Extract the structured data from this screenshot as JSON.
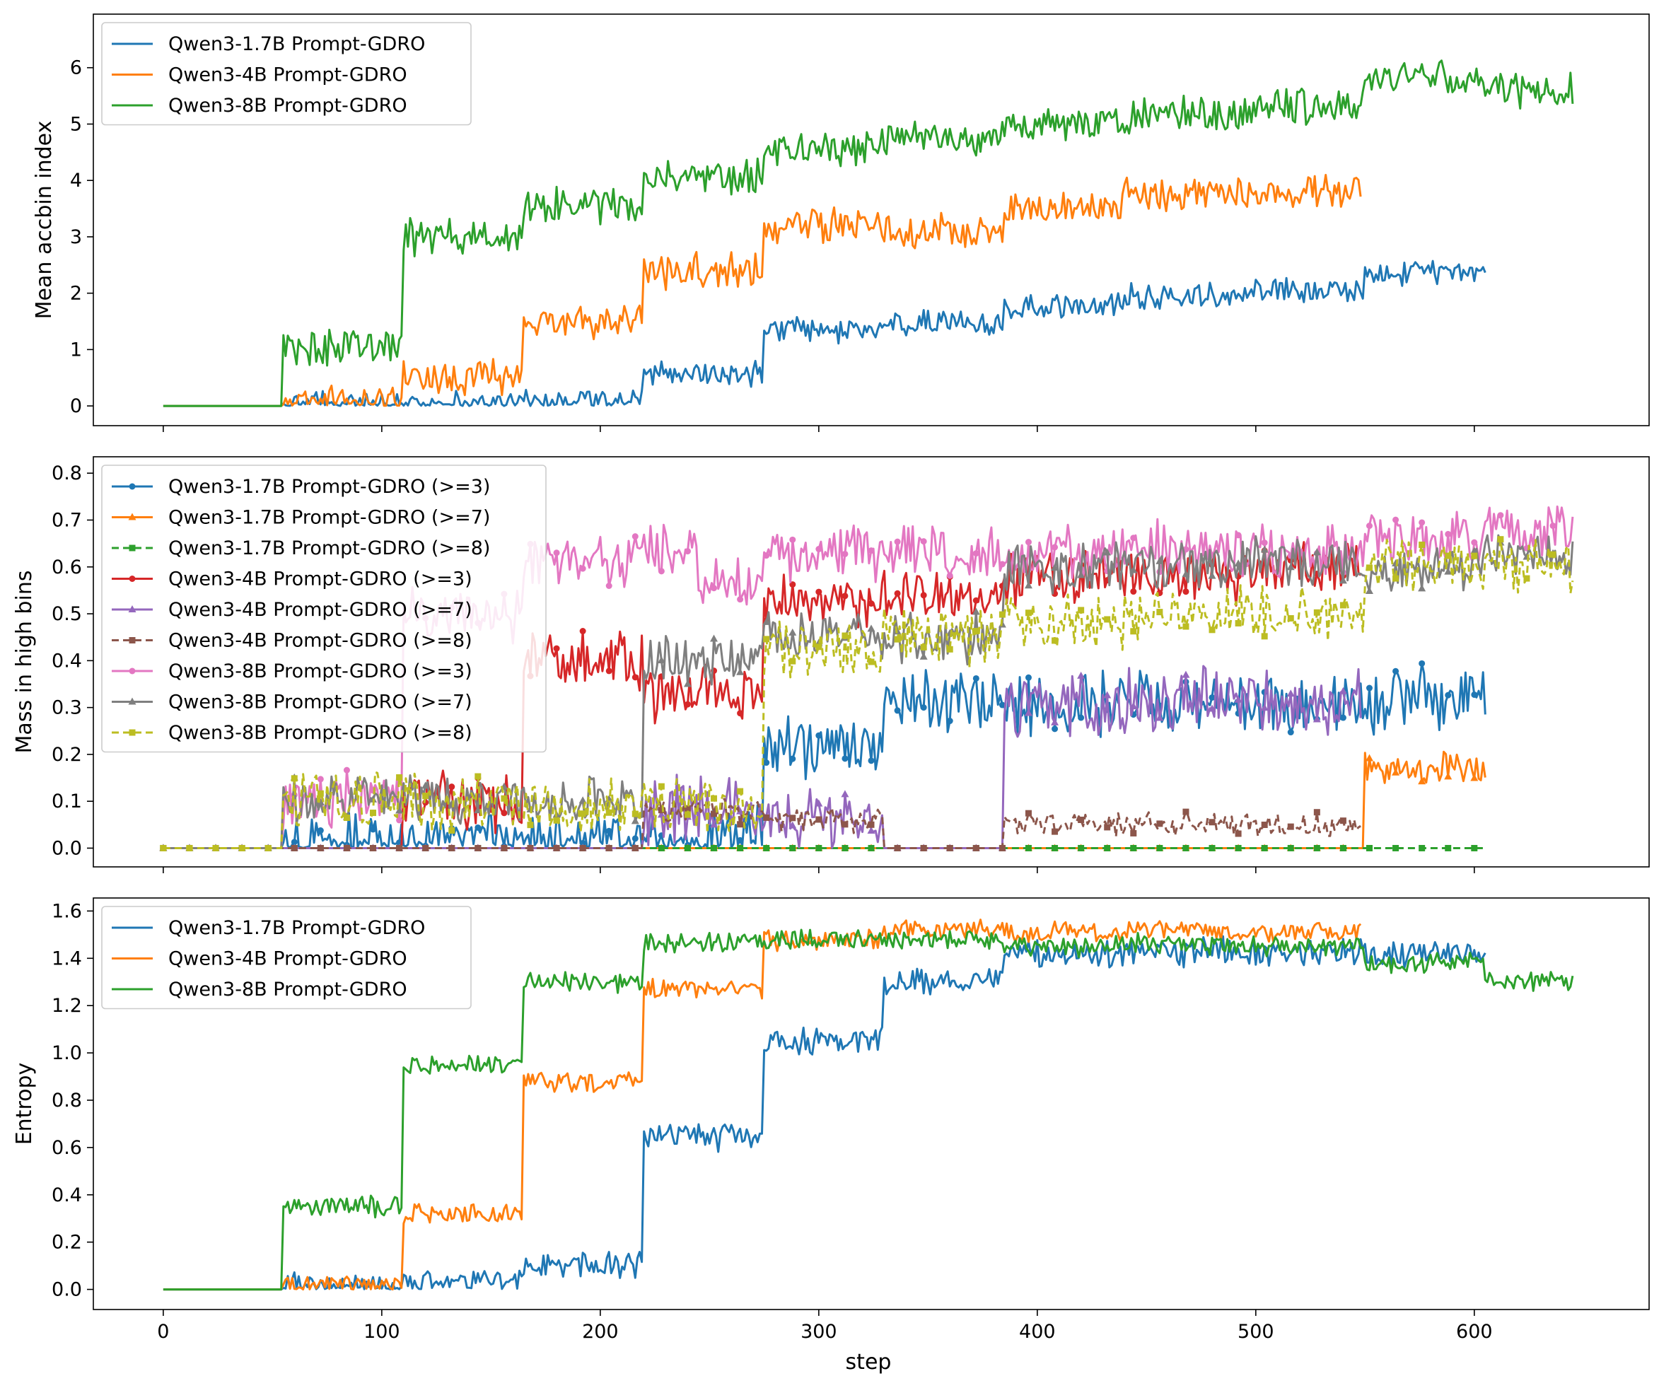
{
  "chart_data": [
    {
      "type": "line",
      "ylabel": "Mean accbin index",
      "xlabel": "",
      "xlim": [
        -32,
        680
      ],
      "ylim": [
        -0.35,
        6.95
      ],
      "xticks": [
        0,
        100,
        200,
        300,
        400,
        500,
        600
      ],
      "yticks": [
        0,
        1,
        2,
        3,
        4,
        5,
        6
      ],
      "ytick_labels": [
        "0",
        "1",
        "2",
        "3",
        "4",
        "5",
        "6"
      ],
      "legend": "top-left",
      "series": [
        {
          "name": "Qwen3-1.7B Prompt-GDRO",
          "color": "#1f77b4",
          "last_step": 605,
          "noise": 0.26,
          "segments": [
            [
              0,
              0
            ],
            [
              55,
              0.02
            ],
            [
              110,
              0.04
            ],
            [
              165,
              0.07
            ],
            [
              220,
              0.55
            ],
            [
              275,
              1.35
            ],
            [
              330,
              1.5
            ],
            [
              385,
              1.75
            ],
            [
              440,
              1.95
            ],
            [
              495,
              2.05
            ],
            [
              550,
              2.35
            ]
          ]
        },
        {
          "name": "Qwen3-4B Prompt-GDRO",
          "color": "#ff7f0e",
          "last_step": 548,
          "noise": 0.35,
          "segments": [
            [
              0,
              0
            ],
            [
              55,
              0.02
            ],
            [
              110,
              0.5
            ],
            [
              165,
              1.5
            ],
            [
              220,
              2.4
            ],
            [
              275,
              3.2
            ],
            [
              330,
              3.1
            ],
            [
              385,
              3.5
            ],
            [
              440,
              3.75
            ],
            [
              495,
              3.8
            ]
          ]
        },
        {
          "name": "Qwen3-8B Prompt-GDRO",
          "color": "#2ca02c",
          "last_step": 645,
          "noise": 0.38,
          "segments": [
            [
              0,
              0
            ],
            [
              55,
              1.05
            ],
            [
              110,
              3.0
            ],
            [
              165,
              3.55
            ],
            [
              220,
              4.05
            ],
            [
              275,
              4.6
            ],
            [
              330,
              4.75
            ],
            [
              385,
              4.95
            ],
            [
              440,
              5.15
            ],
            [
              495,
              5.3
            ],
            [
              550,
              5.8
            ],
            [
              605,
              5.6
            ]
          ]
        }
      ]
    },
    {
      "type": "line",
      "ylabel": "Mass in high bins",
      "xlabel": "",
      "xlim": [
        -32,
        680
      ],
      "ylim": [
        -0.04,
        0.835
      ],
      "xticks": [
        0,
        100,
        200,
        300,
        400,
        500,
        600
      ],
      "yticks": [
        0.0,
        0.1,
        0.2,
        0.3,
        0.4,
        0.5,
        0.6,
        0.7,
        0.8
      ],
      "ytick_labels": [
        "0.0",
        "0.1",
        "0.2",
        "0.3",
        "0.4",
        "0.5",
        "0.6",
        "0.7",
        "0.8"
      ],
      "legend": "top-left",
      "series": [
        {
          "name": "Qwen3-1.7B Prompt-GDRO (>=3)",
          "color": "#1f77b4",
          "dash": "solid",
          "marker": "circle",
          "last_step": 605,
          "noise": 0.08,
          "segments": [
            [
              0,
              0
            ],
            [
              55,
              0.003
            ],
            [
              110,
              0.004
            ],
            [
              165,
              0.015
            ],
            [
              220,
              0.02
            ],
            [
              275,
              0.21
            ],
            [
              330,
              0.32
            ],
            [
              385,
              0.31
            ],
            [
              440,
              0.31
            ],
            [
              495,
              0.3
            ],
            [
              550,
              0.32
            ]
          ]
        },
        {
          "name": "Qwen3-1.7B Prompt-GDRO (>=7)",
          "color": "#ff7f0e",
          "dash": "solid",
          "marker": "triangle",
          "last_step": 605,
          "noise": 0.04,
          "segments": [
            [
              0,
              0
            ],
            [
              550,
              0.17
            ]
          ]
        },
        {
          "name": "Qwen3-1.7B Prompt-GDRO (>=8)",
          "color": "#2ca02c",
          "dash": "dashed",
          "marker": "square",
          "last_step": 605,
          "noise": 0,
          "segments": [
            [
              0,
              0
            ]
          ]
        },
        {
          "name": "Qwen3-4B Prompt-GDRO (>=3)",
          "color": "#d62728",
          "dash": "solid",
          "marker": "circle",
          "last_step": 548,
          "noise": 0.07,
          "segments": [
            [
              0,
              0
            ],
            [
              110,
              0.1
            ],
            [
              165,
              0.4
            ],
            [
              220,
              0.33
            ],
            [
              275,
              0.52
            ],
            [
              330,
              0.55
            ],
            [
              385,
              0.58
            ],
            [
              440,
              0.58
            ],
            [
              495,
              0.6
            ]
          ]
        },
        {
          "name": "Qwen3-4B Prompt-GDRO (>=7)",
          "color": "#9467bd",
          "dash": "solid",
          "marker": "triangle",
          "last_step": 548,
          "noise": 0.08,
          "segments": [
            [
              0,
              0
            ],
            [
              220,
              0.08
            ],
            [
              275,
              0.07
            ],
            [
              330,
              0.0
            ],
            [
              385,
              0.3
            ],
            [
              440,
              0.32
            ],
            [
              495,
              0.31
            ]
          ]
        },
        {
          "name": "Qwen3-4B Prompt-GDRO (>=8)",
          "color": "#8c564b",
          "dash": "dashed",
          "marker": "square",
          "last_step": 548,
          "noise": 0.03,
          "segments": [
            [
              0,
              0
            ],
            [
              220,
              0.08
            ],
            [
              275,
              0.06
            ],
            [
              330,
              0.0
            ],
            [
              385,
              0.05
            ],
            [
              440,
              0.05
            ],
            [
              495,
              0.05
            ]
          ]
        },
        {
          "name": "Qwen3-8B Prompt-GDRO (>=3)",
          "color": "#e377c2",
          "dash": "solid",
          "marker": "circle",
          "last_step": 645,
          "noise": 0.07,
          "segments": [
            [
              0,
              0
            ],
            [
              55,
              0.1
            ],
            [
              110,
              0.5
            ],
            [
              165,
              0.61
            ],
            [
              220,
              0.63
            ],
            [
              245,
              0.57
            ],
            [
              275,
              0.63
            ],
            [
              330,
              0.63
            ],
            [
              385,
              0.63
            ],
            [
              440,
              0.64
            ],
            [
              495,
              0.63
            ],
            [
              550,
              0.66
            ],
            [
              605,
              0.68
            ]
          ]
        },
        {
          "name": "Qwen3-8B Prompt-GDRO (>=7)",
          "color": "#7f7f7f",
          "dash": "solid",
          "marker": "triangle",
          "last_step": 645,
          "noise": 0.06,
          "segments": [
            [
              0,
              0
            ],
            [
              55,
              0.1
            ],
            [
              110,
              0.1
            ],
            [
              165,
              0.1
            ],
            [
              220,
              0.4
            ],
            [
              275,
              0.45
            ],
            [
              330,
              0.45
            ],
            [
              385,
              0.6
            ],
            [
              440,
              0.6
            ],
            [
              495,
              0.61
            ],
            [
              550,
              0.6
            ],
            [
              605,
              0.63
            ]
          ]
        },
        {
          "name": "Qwen3-8B Prompt-GDRO (>=8)",
          "color": "#bcbd22",
          "dash": "dashed",
          "marker": "square",
          "last_step": 645,
          "noise": 0.07,
          "segments": [
            [
              0,
              0
            ],
            [
              55,
              0.11
            ],
            [
              110,
              0.1
            ],
            [
              165,
              0.09
            ],
            [
              220,
              0.09
            ],
            [
              275,
              0.42
            ],
            [
              330,
              0.45
            ],
            [
              385,
              0.48
            ],
            [
              440,
              0.5
            ],
            [
              495,
              0.5
            ],
            [
              550,
              0.6
            ],
            [
              605,
              0.6
            ]
          ]
        }
      ]
    },
    {
      "type": "line",
      "ylabel": "Entropy",
      "xlabel": "step",
      "xlim": [
        -32,
        680
      ],
      "ylim": [
        -0.085,
        1.655
      ],
      "xticks": [
        0,
        100,
        200,
        300,
        400,
        500,
        600
      ],
      "xtick_labels": [
        "0",
        "100",
        "200",
        "300",
        "400",
        "500",
        "600"
      ],
      "yticks": [
        0.0,
        0.2,
        0.4,
        0.6,
        0.8,
        1.0,
        1.2,
        1.4,
        1.6
      ],
      "ytick_labels": [
        "0.0",
        "0.2",
        "0.4",
        "0.6",
        "0.8",
        "1.0",
        "1.2",
        "1.4",
        "1.6"
      ],
      "legend": "top-left",
      "series": [
        {
          "name": "Qwen3-1.7B Prompt-GDRO",
          "color": "#1f77b4",
          "last_step": 605,
          "noise": 0.07,
          "segments": [
            [
              0,
              0
            ],
            [
              55,
              0.01
            ],
            [
              110,
              0.03
            ],
            [
              165,
              0.1
            ],
            [
              220,
              0.65
            ],
            [
              275,
              1.05
            ],
            [
              330,
              1.3
            ],
            [
              385,
              1.42
            ],
            [
              440,
              1.43
            ],
            [
              495,
              1.42
            ],
            [
              550,
              1.42
            ]
          ]
        },
        {
          "name": "Qwen3-4B Prompt-GDRO",
          "color": "#ff7f0e",
          "last_step": 548,
          "noise": 0.05,
          "segments": [
            [
              0,
              0
            ],
            [
              55,
              0.02
            ],
            [
              110,
              0.32
            ],
            [
              165,
              0.88
            ],
            [
              220,
              1.27
            ],
            [
              275,
              1.48
            ],
            [
              330,
              1.52
            ],
            [
              385,
              1.51
            ],
            [
              440,
              1.52
            ],
            [
              495,
              1.51
            ]
          ]
        },
        {
          "name": "Qwen3-8B Prompt-GDRO",
          "color": "#2ca02c",
          "last_step": 645,
          "noise": 0.05,
          "segments": [
            [
              0,
              0
            ],
            [
              55,
              0.35
            ],
            [
              110,
              0.95
            ],
            [
              165,
              1.3
            ],
            [
              220,
              1.47
            ],
            [
              275,
              1.48
            ],
            [
              330,
              1.48
            ],
            [
              385,
              1.45
            ],
            [
              440,
              1.46
            ],
            [
              495,
              1.45
            ],
            [
              550,
              1.38
            ],
            [
              605,
              1.3
            ]
          ]
        }
      ]
    }
  ]
}
